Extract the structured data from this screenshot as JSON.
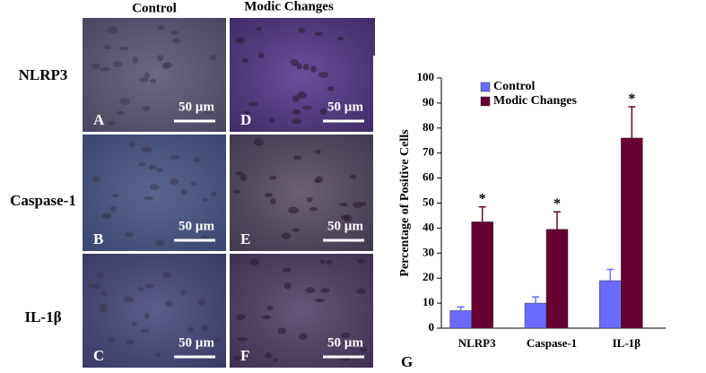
{
  "image_panel": {
    "column_labels": [
      "Control",
      "Modic Changes"
    ],
    "row_labels": [
      "NLRP3",
      "Caspase-1",
      "IL-1β"
    ],
    "panel_letters": [
      [
        "A",
        "D"
      ],
      [
        "B",
        "E"
      ],
      [
        "C",
        "F"
      ]
    ],
    "scale_bar": "50 µm"
  },
  "chart_data": {
    "type": "bar",
    "panel_label": "G",
    "y_label": "Percentage of Positive Cells",
    "categories": [
      "NLRP3",
      "Caspase-1",
      "IL-1β"
    ],
    "series": [
      {
        "name": "Control",
        "color": "#6a6aff",
        "values": [
          7,
          10,
          19
        ],
        "errors": [
          1.5,
          2.5,
          4.5
        ]
      },
      {
        "name": "Modic Changes",
        "color": "#660033",
        "values": [
          42.5,
          39.5,
          76
        ],
        "errors": [
          6,
          7,
          12.5
        ]
      }
    ],
    "annotations": [
      "*",
      "*",
      "*"
    ],
    "ylim": [
      0,
      100
    ],
    "yticks": [
      0,
      10,
      20,
      30,
      40,
      50,
      60,
      70,
      80,
      90,
      100
    ],
    "legend": "upper left"
  }
}
